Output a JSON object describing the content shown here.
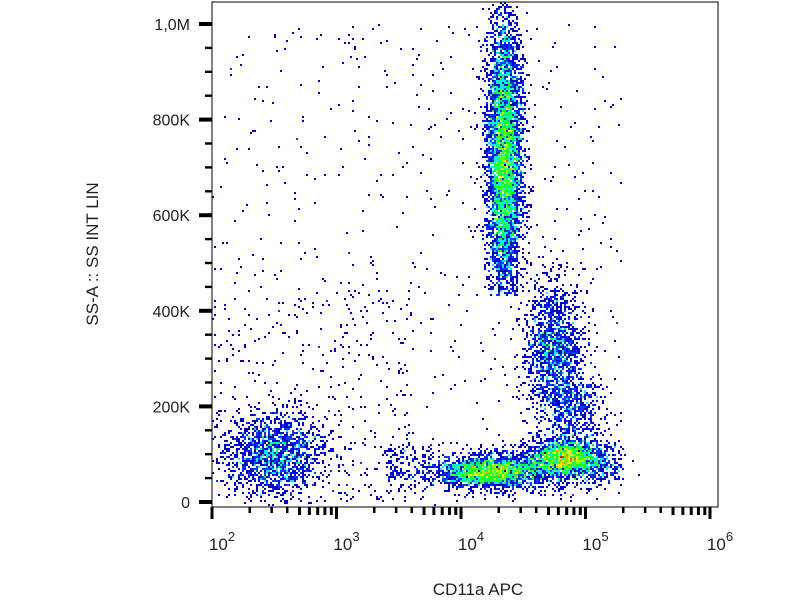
{
  "chart_data": {
    "type": "scatter",
    "subtype": "density-dot-plot",
    "title": "",
    "xlabel": "CD11a APC",
    "ylabel": "SS-A :: SS INT LIN",
    "x_scale": "log",
    "xlim": [
      100,
      1000000
    ],
    "ylim": [
      0,
      1045000
    ],
    "x_ticks": [
      {
        "value": 100,
        "base": "10",
        "exp": "2"
      },
      {
        "value": 1000,
        "base": "10",
        "exp": "3"
      },
      {
        "value": 10000,
        "base": "10",
        "exp": "4"
      },
      {
        "value": 100000,
        "base": "10",
        "exp": "5"
      },
      {
        "value": 1000000,
        "base": "10",
        "exp": "6"
      }
    ],
    "y_ticks": [
      {
        "value": 0,
        "label": "0"
      },
      {
        "value": 200000,
        "label": "200K"
      },
      {
        "value": 400000,
        "label": "400K"
      },
      {
        "value": 600000,
        "label": "600K"
      },
      {
        "value": 800000,
        "label": "800K"
      },
      {
        "value": 1000000,
        "label": "1,0M"
      }
    ],
    "grid": false,
    "legend": "none",
    "colormap": [
      "#00008f",
      "#0000ff",
      "#00ffff",
      "#00ff00",
      "#ffff00",
      "#ff0000"
    ],
    "populations": [
      {
        "x_center": 300,
        "y_center": 100000
      },
      {
        "x_center": 18000,
        "y_center": 65000
      },
      {
        "x_center": 70000,
        "y_center": 90000
      },
      {
        "x_center": 22000,
        "y_center": 720000
      },
      {
        "x_center": 56000,
        "y_center": 320000
      }
    ]
  }
}
